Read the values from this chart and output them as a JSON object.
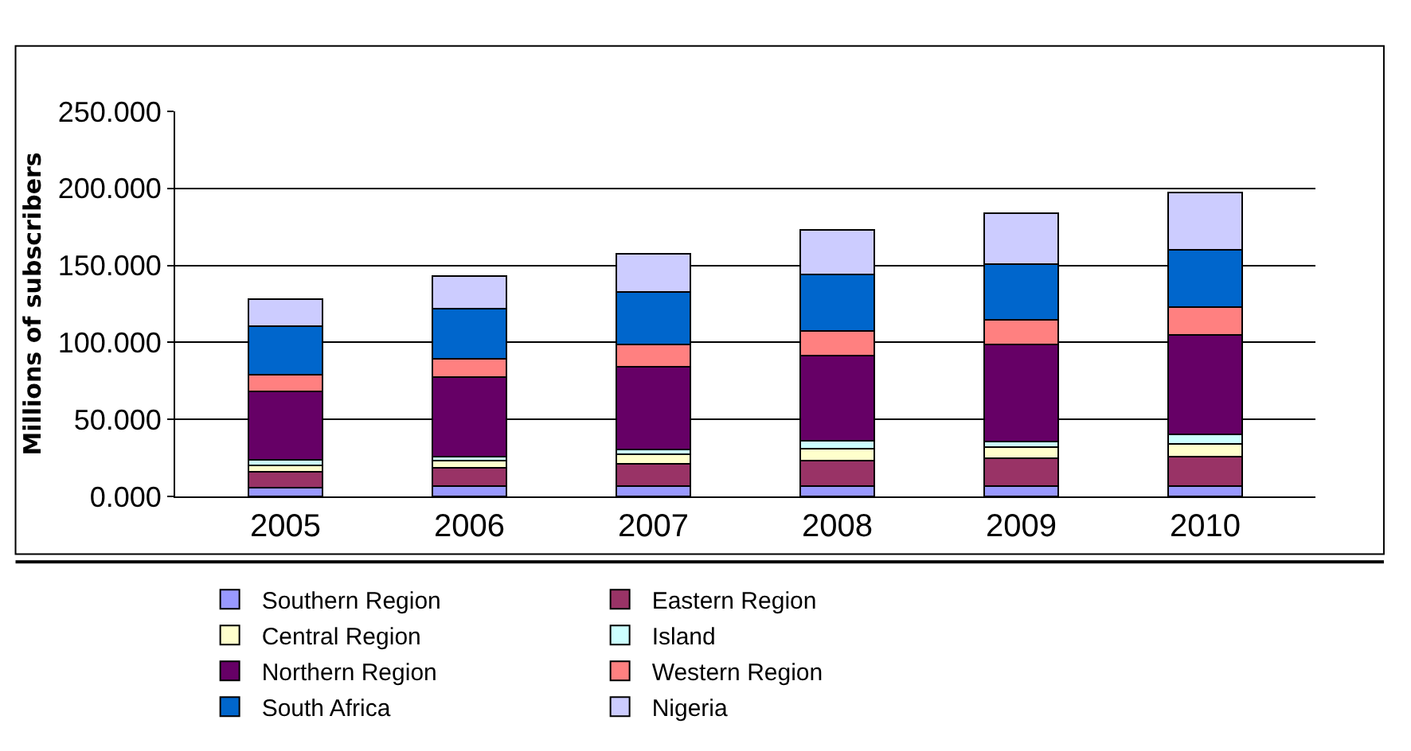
{
  "chart_data": {
    "type": "bar",
    "stacked": true,
    "ylabel": "Millions of subscribers",
    "categories": [
      "2005",
      "2006",
      "2007",
      "2008",
      "2009",
      "2010"
    ],
    "series": [
      {
        "name": "Southern Region",
        "color": "#9999ff",
        "values": [
          5.5,
          6.5,
          6.5,
          6.5,
          6.5,
          6.5
        ]
      },
      {
        "name": "Eastern Region",
        "color": "#993366",
        "values": [
          10.5,
          12,
          14.5,
          17,
          18.5,
          19.5
        ]
      },
      {
        "name": "Central Region",
        "color": "#ffffcc",
        "values": [
          4,
          5,
          6.5,
          7.5,
          7,
          8
        ]
      },
      {
        "name": "Island",
        "color": "#ccffff",
        "values": [
          4,
          2.5,
          3,
          5,
          3.5,
          6.5
        ]
      },
      {
        "name": "Northern Region",
        "color": "#660066",
        "values": [
          44,
          51.5,
          53.5,
          55.5,
          63,
          64.5
        ]
      },
      {
        "name": "Western Region",
        "color": "#ff8080",
        "values": [
          11,
          12,
          14.5,
          16,
          16,
          18
        ]
      },
      {
        "name": "South Africa",
        "color": "#0066cc",
        "values": [
          31.5,
          32.5,
          34.5,
          36.5,
          36.5,
          37
        ]
      },
      {
        "name": "Nigeria",
        "color": "#ccccff",
        "values": [
          17.5,
          21,
          24.5,
          29,
          33,
          37.5
        ]
      }
    ],
    "ylim": [
      0,
      250
    ],
    "yticks": [
      {
        "value": 0,
        "label": "0.000"
      },
      {
        "value": 50,
        "label": "50.000"
      },
      {
        "value": 100,
        "label": "100.000"
      },
      {
        "value": 150,
        "label": "150.000"
      },
      {
        "value": 200,
        "label": "200.000"
      },
      {
        "value": 250,
        "label": "250.000"
      }
    ],
    "grid": "y",
    "legend": "bottom"
  }
}
